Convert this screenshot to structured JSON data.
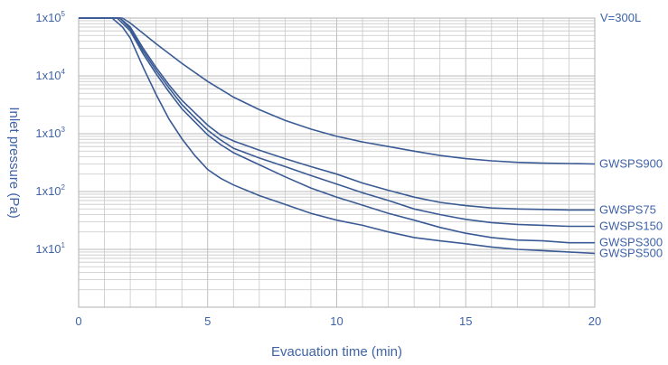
{
  "chart_data": {
    "type": "line",
    "title": "",
    "volume_label": "V=300L",
    "xlabel": "Evacuation time (min)",
    "ylabel": "Inlet pressure (Pa)",
    "xlim": [
      0,
      20
    ],
    "ylim": [
      1,
      100000
    ],
    "y_scale": "log",
    "grid": true,
    "x_ticks": [
      {
        "value": 0,
        "label": "0"
      },
      {
        "value": 5,
        "label": "5"
      },
      {
        "value": 10,
        "label": "10"
      },
      {
        "value": 15,
        "label": "15"
      },
      {
        "value": 20,
        "label": "20"
      }
    ],
    "y_ticks": [
      {
        "value": 100000,
        "mantissa": "1x10",
        "exp": "5"
      },
      {
        "value": 10000,
        "mantissa": "1x10",
        "exp": "4"
      },
      {
        "value": 1000,
        "mantissa": "1x10",
        "exp": "3"
      },
      {
        "value": 100,
        "mantissa": "1x10",
        "exp": "2"
      },
      {
        "value": 10,
        "mantissa": "1x10",
        "exp": "1"
      }
    ],
    "series": [
      {
        "name": "GWSPS900",
        "points": [
          [
            0,
            100000
          ],
          [
            1.7,
            100000
          ],
          [
            2,
            82000
          ],
          [
            3,
            36000
          ],
          [
            4,
            16500
          ],
          [
            5,
            8000
          ],
          [
            6,
            4300
          ],
          [
            7,
            2600
          ],
          [
            8,
            1700
          ],
          [
            9,
            1200
          ],
          [
            10,
            900
          ],
          [
            11,
            720
          ],
          [
            12,
            600
          ],
          [
            13,
            500
          ],
          [
            14,
            420
          ],
          [
            15,
            370
          ],
          [
            16,
            340
          ],
          [
            17,
            320
          ],
          [
            18,
            310
          ],
          [
            19,
            305
          ],
          [
            20,
            300
          ]
        ]
      },
      {
        "name": "GWSPS75",
        "points": [
          [
            0,
            100000
          ],
          [
            1.6,
            100000
          ],
          [
            2,
            70000
          ],
          [
            2.5,
            30000
          ],
          [
            3,
            14000
          ],
          [
            3.5,
            7000
          ],
          [
            4,
            3800
          ],
          [
            4.5,
            2300
          ],
          [
            5,
            1400
          ],
          [
            5.5,
            950
          ],
          [
            6,
            750
          ],
          [
            7,
            520
          ],
          [
            8,
            370
          ],
          [
            9,
            270
          ],
          [
            10,
            200
          ],
          [
            11,
            140
          ],
          [
            12,
            105
          ],
          [
            13,
            80
          ],
          [
            14,
            65
          ],
          [
            15,
            57
          ],
          [
            16,
            52
          ],
          [
            17,
            50
          ],
          [
            18,
            49
          ],
          [
            19,
            48
          ],
          [
            20,
            48
          ]
        ]
      },
      {
        "name": "GWSPS150",
        "points": [
          [
            0,
            100000
          ],
          [
            1.6,
            100000
          ],
          [
            2,
            65000
          ],
          [
            2.5,
            27000
          ],
          [
            3,
            12500
          ],
          [
            3.5,
            6200
          ],
          [
            4,
            3200
          ],
          [
            4.5,
            1900
          ],
          [
            5,
            1150
          ],
          [
            5.5,
            780
          ],
          [
            6,
            560
          ],
          [
            7,
            380
          ],
          [
            8,
            270
          ],
          [
            9,
            190
          ],
          [
            10,
            135
          ],
          [
            11,
            95
          ],
          [
            12,
            70
          ],
          [
            13,
            50
          ],
          [
            14,
            40
          ],
          [
            15,
            33
          ],
          [
            16,
            29
          ],
          [
            17,
            27
          ],
          [
            18,
            26
          ],
          [
            19,
            25
          ],
          [
            20,
            25
          ]
        ]
      },
      {
        "name": "GWSPS300",
        "points": [
          [
            0,
            100000
          ],
          [
            1.5,
            100000
          ],
          [
            2,
            60000
          ],
          [
            2.5,
            24000
          ],
          [
            3,
            11000
          ],
          [
            3.5,
            5300
          ],
          [
            4,
            2700
          ],
          [
            4.5,
            1600
          ],
          [
            5,
            950
          ],
          [
            5.5,
            650
          ],
          [
            6,
            470
          ],
          [
            7,
            290
          ],
          [
            8,
            180
          ],
          [
            9,
            115
          ],
          [
            10,
            80
          ],
          [
            11,
            58
          ],
          [
            12,
            42
          ],
          [
            13,
            32
          ],
          [
            14,
            24
          ],
          [
            15,
            19
          ],
          [
            16,
            16
          ],
          [
            17,
            14.5
          ],
          [
            18,
            14
          ],
          [
            19,
            13
          ],
          [
            20,
            13
          ]
        ]
      },
      {
        "name": "GWSPS500",
        "points": [
          [
            0,
            100000
          ],
          [
            1.3,
            100000
          ],
          [
            1.7,
            70000
          ],
          [
            2,
            45000
          ],
          [
            2.5,
            14000
          ],
          [
            3,
            4800
          ],
          [
            3.5,
            1800
          ],
          [
            4,
            820
          ],
          [
            4.5,
            420
          ],
          [
            5,
            240
          ],
          [
            5.5,
            170
          ],
          [
            6,
            130
          ],
          [
            7,
            85
          ],
          [
            8,
            60
          ],
          [
            9,
            42
          ],
          [
            10,
            32
          ],
          [
            11,
            26
          ],
          [
            12,
            20
          ],
          [
            13,
            16
          ],
          [
            14,
            14
          ],
          [
            15,
            12.5
          ],
          [
            16,
            11
          ],
          [
            17,
            10
          ],
          [
            18,
            9.5
          ],
          [
            19,
            9
          ],
          [
            20,
            8.5
          ]
        ]
      }
    ]
  }
}
